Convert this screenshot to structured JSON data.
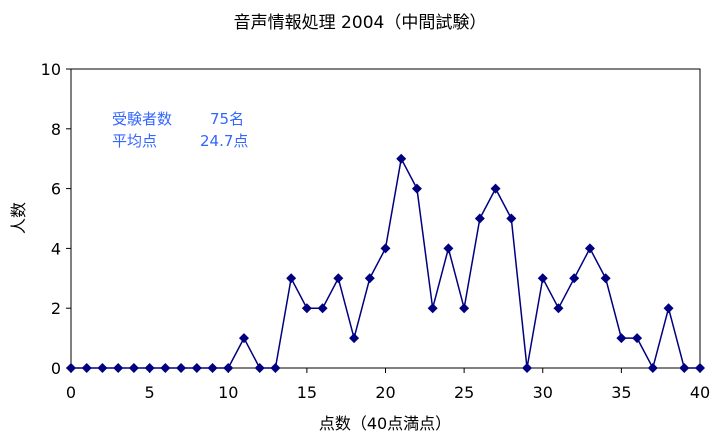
{
  "chart_data": {
    "type": "line",
    "title": "音声情報処理  2004（中間試験）",
    "xlabel": "点数（40点満点）",
    "ylabel": "人数",
    "xlim": [
      0,
      40
    ],
    "ylim": [
      0,
      10
    ],
    "xticks": [
      0,
      5,
      10,
      15,
      20,
      25,
      30,
      35,
      40
    ],
    "yticks": [
      0,
      2,
      4,
      6,
      8,
      10
    ],
    "grid": false,
    "line_color": "#000080",
    "note_color": "#3366ff",
    "x": [
      0,
      1,
      2,
      3,
      4,
      5,
      6,
      7,
      8,
      9,
      10,
      11,
      12,
      13,
      14,
      15,
      16,
      17,
      18,
      19,
      20,
      21,
      22,
      23,
      24,
      25,
      26,
      27,
      28,
      29,
      30,
      31,
      32,
      33,
      34,
      35,
      36,
      37,
      38,
      39,
      40
    ],
    "values": [
      0,
      0,
      0,
      0,
      0,
      0,
      0,
      0,
      0,
      0,
      0,
      1,
      0,
      0,
      3,
      2,
      2,
      3,
      1,
      3,
      4,
      7,
      6,
      2,
      4,
      2,
      5,
      6,
      5,
      0,
      3,
      2,
      3,
      4,
      3,
      1,
      1,
      0,
      2,
      0,
      0
    ],
    "annotations": {
      "examinees_label": "受験者数",
      "examinees_value": "75名",
      "average_label": "平均点",
      "average_value": "24.7点"
    }
  }
}
